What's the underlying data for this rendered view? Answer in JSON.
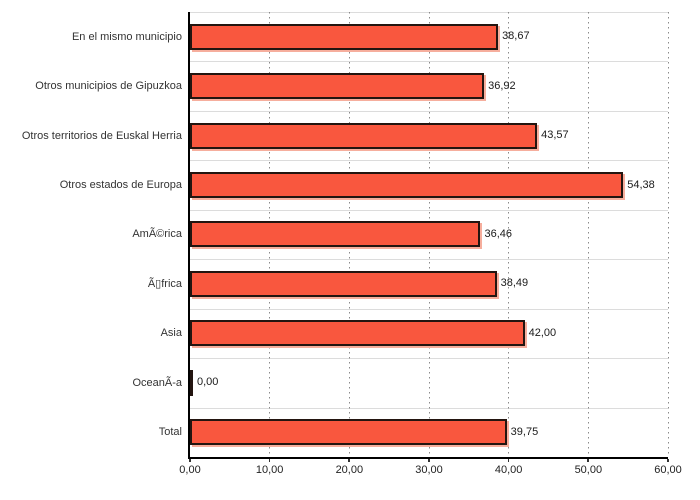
{
  "chart_data": {
    "type": "bar",
    "orientation": "horizontal",
    "title": "",
    "xlabel": "",
    "ylabel": "",
    "categories": [
      "En el mismo municipio",
      "Otros municipios de Gipuzkoa",
      "Otros territorios de Euskal Herria",
      "Otros estados de Europa",
      "AmÃ©rica",
      "Ã▯frica",
      "Asia",
      "OceanÃ-a",
      "Total"
    ],
    "values": [
      38.67,
      36.92,
      43.57,
      54.38,
      36.46,
      38.49,
      42.0,
      0.0,
      39.75
    ],
    "value_labels": [
      "38,67",
      "36,92",
      "43,57",
      "54,38",
      "36,46",
      "38,49",
      "42,00",
      "0,00",
      "39,75"
    ],
    "xlim": [
      0,
      60
    ],
    "x_tick_values": [
      0,
      10,
      20,
      30,
      40,
      50,
      60
    ],
    "x_tick_labels": [
      "0,00",
      "10,00",
      "20,00",
      "30,00",
      "40,00",
      "50,00",
      "60,00"
    ],
    "grid": "vertical-dotted",
    "legend": "none",
    "colors": {
      "bar_fill": "#F9573E",
      "bar_border": "#231510",
      "bar_shadow": "#F6AE9D",
      "gridline": "#8a8a8a",
      "row_separator": "#dcdcdc",
      "axis": "#000000",
      "label_text": "#333333",
      "background": "#ffffff"
    }
  }
}
